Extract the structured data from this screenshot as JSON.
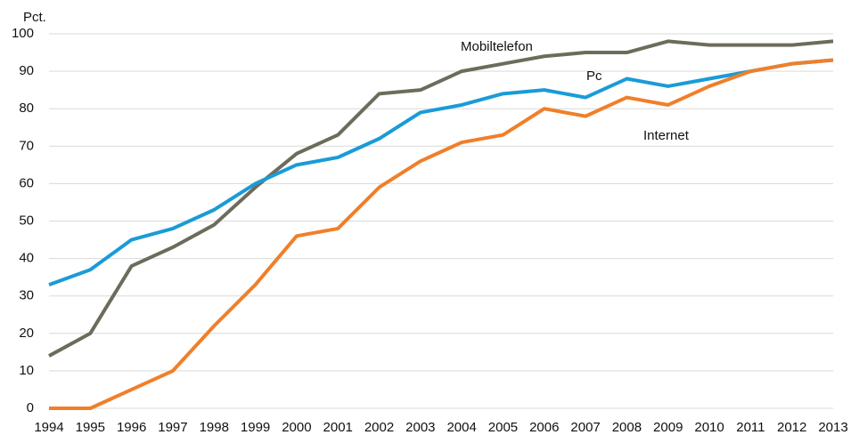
{
  "chart_data": {
    "type": "line",
    "y_label": "Pct.",
    "x": [
      1994,
      1995,
      1996,
      1997,
      1998,
      1999,
      2000,
      2001,
      2002,
      2003,
      2004,
      2005,
      2006,
      2007,
      2008,
      2009,
      2010,
      2011,
      2012,
      2013
    ],
    "xlim": [
      1994,
      2013
    ],
    "ylim": [
      0,
      100
    ],
    "yticks": [
      0,
      10,
      20,
      30,
      40,
      50,
      60,
      70,
      80,
      90,
      100
    ],
    "grid": true,
    "series": [
      {
        "name": "Mobiltelefon",
        "color": "#6d6b5b",
        "values": [
          14,
          20,
          38,
          43,
          49,
          59,
          68,
          73,
          84,
          85,
          90,
          92,
          94,
          95,
          95,
          98,
          97,
          97,
          97,
          98
        ]
      },
      {
        "name": "Pc",
        "color": "#1a9bd7",
        "values": [
          33,
          37,
          45,
          48,
          53,
          60,
          65,
          67,
          72,
          79,
          81,
          84,
          85,
          83,
          88,
          86,
          88,
          90,
          92,
          93
        ]
      },
      {
        "name": "Internet",
        "color": "#f07f2a",
        "values": [
          0,
          0,
          5,
          10,
          22,
          33,
          46,
          48,
          59,
          66,
          71,
          73,
          80,
          78,
          83,
          81,
          86,
          90,
          92,
          93
        ]
      }
    ]
  }
}
